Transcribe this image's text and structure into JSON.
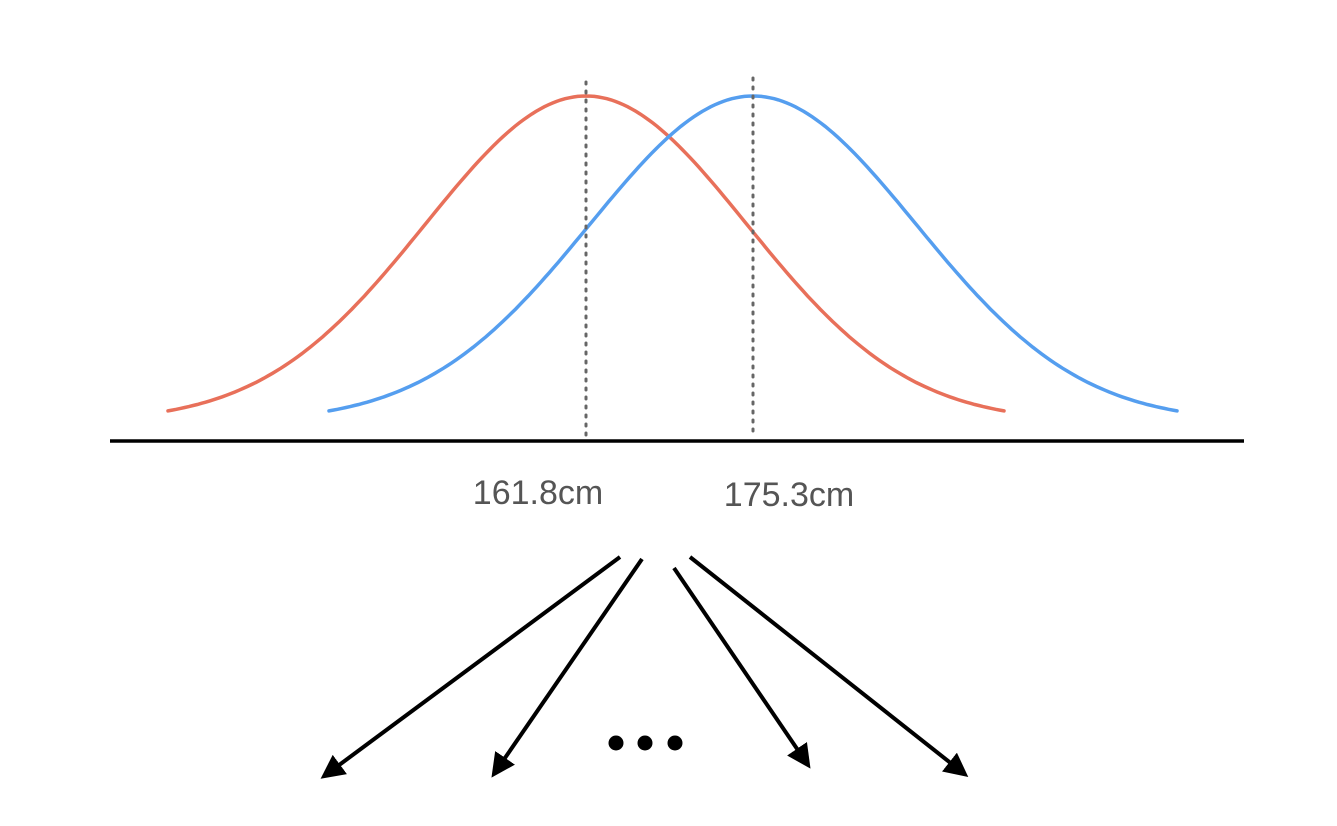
{
  "colors": {
    "female_curve": "#E8705A",
    "male_curve": "#559EEF",
    "axis": "#000000",
    "label_text": "#555555",
    "mean_line": "#666666",
    "arrows": "#000000"
  },
  "distributions": [
    {
      "key": "left",
      "mean_label": "161.8cm",
      "color": "#E8705A"
    },
    {
      "key": "right",
      "mean_label": "175.3cm",
      "color": "#559EEF"
    }
  ],
  "ellipsis_text": "•••"
}
